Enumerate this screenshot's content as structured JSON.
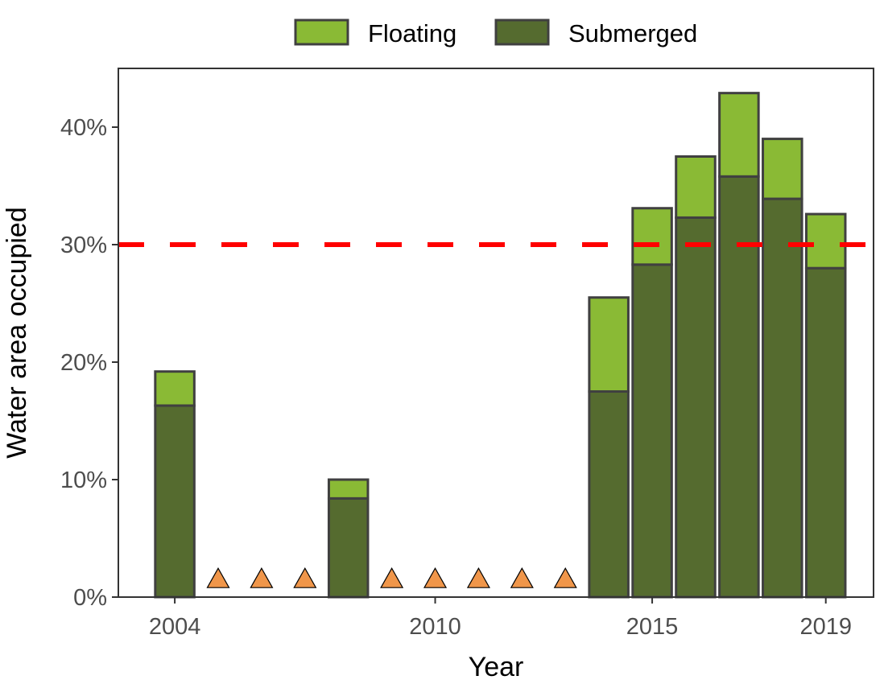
{
  "chart_data": {
    "type": "bar",
    "stacked": true,
    "title": "",
    "xlabel": "Year",
    "ylabel": "Water area occupied",
    "x": [
      2004,
      2005,
      2006,
      2007,
      2008,
      2009,
      2010,
      2011,
      2012,
      2013,
      2014,
      2015,
      2016,
      2017,
      2018,
      2019
    ],
    "x_ticks": [
      2004,
      2010,
      2015,
      2019
    ],
    "y_ticks": [
      0,
      10,
      20,
      30,
      40
    ],
    "y_tick_suffix": "%",
    "ylim": [
      0,
      45
    ],
    "series": [
      {
        "name": "Submerged",
        "color": "#556b2f",
        "values": [
          16.3,
          0,
          0,
          0,
          8.4,
          0,
          0,
          0,
          0,
          0,
          17.5,
          28.3,
          32.3,
          35.8,
          33.9,
          28.0
        ]
      },
      {
        "name": "Floating",
        "color": "#8aba35",
        "values": [
          2.9,
          0,
          0,
          0,
          1.6,
          0,
          0,
          0,
          0,
          0,
          8.0,
          4.8,
          5.2,
          7.1,
          5.1,
          4.6
        ]
      }
    ],
    "markers": {
      "shape": "triangle",
      "color": "#f0964a",
      "x": [
        2005,
        2006,
        2007,
        2009,
        2010,
        2011,
        2012,
        2013
      ]
    },
    "reference_line": {
      "y": 30,
      "style": "dashed",
      "color": "#ff0000"
    },
    "legend": {
      "position": "top",
      "order": [
        "Floating",
        "Submerged"
      ]
    },
    "grid": false,
    "bar_border_color": "#404040"
  }
}
